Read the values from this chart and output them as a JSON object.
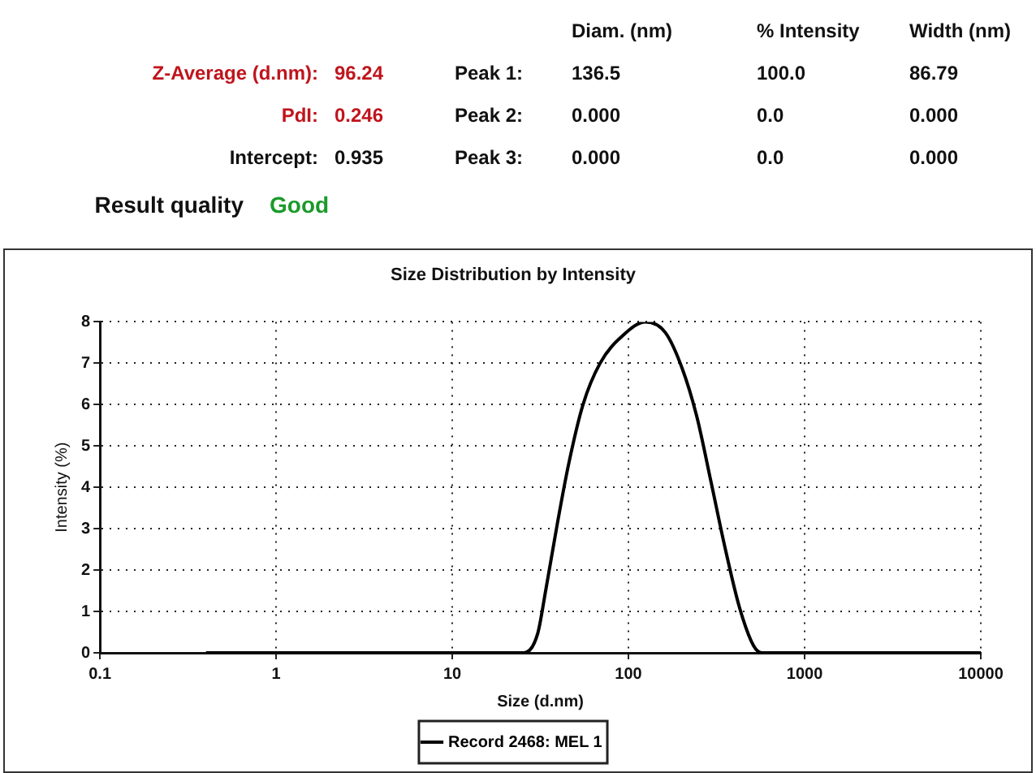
{
  "chart_data": {
    "type": "line",
    "title": "Size Distribution by Intensity",
    "xlabel": "Size (d.nm)",
    "ylabel": "Intensity (%)",
    "log": "x",
    "xlim": [
      0.1,
      10000
    ],
    "xticks": [
      0.1,
      1,
      10,
      100,
      1000,
      10000
    ],
    "ylim": [
      0,
      8
    ],
    "yticks": [
      0,
      1,
      2,
      3,
      4,
      5,
      6,
      7,
      8
    ],
    "grid": true,
    "legend": "bottom",
    "marker": "none",
    "line_style": "solid",
    "series": [
      {
        "name": "Record 2468: MEL 1",
        "color": "#000000",
        "x": [
          0.4,
          10,
          25.3,
          30.5,
          34.0,
          39.5,
          45.8,
          55.2,
          69.0,
          92.9,
          125,
          162,
          202,
          244,
          294,
          353,
          426,
          513,
          573,
          1000,
          10000
        ],
        "values": [
          0,
          0,
          0,
          0.46,
          1.54,
          3.13,
          4.57,
          6.0,
          7.0,
          7.67,
          8.0,
          7.74,
          6.87,
          5.72,
          4.14,
          2.55,
          1.11,
          0.17,
          0,
          0,
          0
        ]
      }
    ],
    "annotations": [
      "Diam. (nm)",
      "% Intensity",
      "Width (nm)",
      "Z-Average (d.nm):",
      "96.24",
      "Peak 1:",
      "136.5",
      "100.0",
      "86.79",
      "PdI:",
      "0.246",
      "Peak 2:",
      "0.000",
      "0.0",
      "0.000",
      "Intercept:",
      "0.935",
      "Peak 3:",
      "0.000",
      "0.0",
      "0.000",
      "Result quality",
      "Good"
    ]
  }
}
